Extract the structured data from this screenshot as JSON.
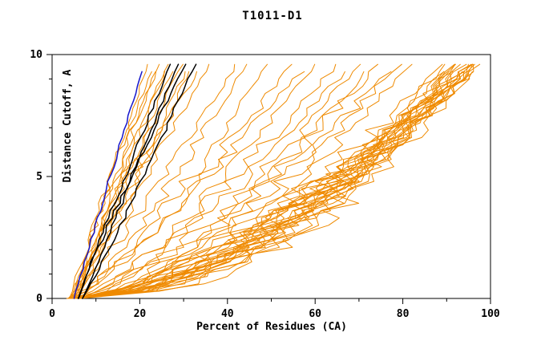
{
  "chart_data": {
    "type": "line",
    "title": "T1011-D1",
    "xlabel": "Percent of Residues (CA)",
    "ylabel": "Distance Cutoff, A",
    "xlim": [
      0,
      100
    ],
    "ylim": [
      0,
      10
    ],
    "xticks": [
      0,
      20,
      40,
      60,
      80,
      100
    ],
    "xminor_step": 10,
    "yticks": [
      0,
      5,
      10
    ],
    "yminor_step": 1,
    "grid": false,
    "legend": "none",
    "colors": {
      "model": "#ef8a00",
      "top_models": "#000000",
      "highlight_model": "#1515cc"
    },
    "groups": [
      {
        "name": "orange-model-curves",
        "color": "#ef8a00",
        "width": 1,
        "jitter": 0.045,
        "curves": [
          [
            4,
            97,
            0.5
          ],
          [
            5,
            96,
            0.55
          ],
          [
            4,
            95,
            0.48
          ],
          [
            6,
            98,
            0.6
          ],
          [
            5,
            93,
            0.52
          ],
          [
            4,
            92,
            0.58
          ],
          [
            5,
            97,
            0.45
          ],
          [
            6,
            95,
            0.65
          ],
          [
            4,
            90,
            0.55
          ],
          [
            5,
            94,
            0.5
          ],
          [
            6,
            96,
            0.7
          ],
          [
            4,
            98,
            0.62
          ],
          [
            5,
            91,
            0.47
          ],
          [
            6,
            93,
            0.57
          ],
          [
            4,
            96,
            0.52
          ],
          [
            5,
            95,
            0.68
          ],
          [
            6,
            97,
            0.55
          ],
          [
            4,
            94,
            0.6
          ],
          [
            5,
            92,
            0.49
          ],
          [
            6,
            90,
            0.64
          ],
          [
            5,
            98,
            0.53
          ],
          [
            4,
            93,
            0.58
          ],
          [
            6,
            94,
            0.46
          ],
          [
            5,
            96,
            0.63
          ],
          [
            4,
            91,
            0.55
          ],
          [
            5,
            80,
            0.62
          ],
          [
            6,
            75,
            0.7
          ],
          [
            4,
            70,
            0.65
          ],
          [
            5,
            65,
            0.75
          ],
          [
            6,
            60,
            0.72
          ],
          [
            4,
            55,
            0.8
          ],
          [
            5,
            50,
            0.78
          ],
          [
            6,
            45,
            0.85
          ],
          [
            4,
            42,
            0.88
          ],
          [
            5,
            72,
            0.6
          ],
          [
            6,
            82,
            0.58
          ],
          [
            4,
            58,
            0.82
          ],
          [
            5,
            78,
            0.66
          ],
          [
            6,
            68,
            0.74
          ],
          [
            5,
            22,
            1.05
          ],
          [
            6,
            24,
            1.1
          ],
          [
            4,
            26,
            0.95
          ],
          [
            5,
            28,
            1.0
          ],
          [
            6,
            30,
            1.15
          ],
          [
            4,
            32,
            0.9
          ],
          [
            5,
            34,
            1.2
          ],
          [
            6,
            36,
            0.98
          ],
          [
            4,
            25,
            1.08
          ],
          [
            5,
            31,
            0.92
          ],
          [
            6,
            27,
            1.12
          ],
          [
            5,
            23,
            1.18
          ]
        ]
      },
      {
        "name": "black-model-curves",
        "color": "#000000",
        "width": 1.5,
        "jitter": 0.022,
        "curves": [
          [
            6,
            27,
            1.05
          ],
          [
            7,
            29,
            1.0
          ],
          [
            6,
            31,
            1.1
          ],
          [
            7,
            33,
            0.95
          ]
        ]
      },
      {
        "name": "blue-model-curve",
        "color": "#1515cc",
        "width": 1.5,
        "jitter": 0.022,
        "curves": [
          [
            5,
            21,
            1.02
          ]
        ]
      }
    ]
  }
}
